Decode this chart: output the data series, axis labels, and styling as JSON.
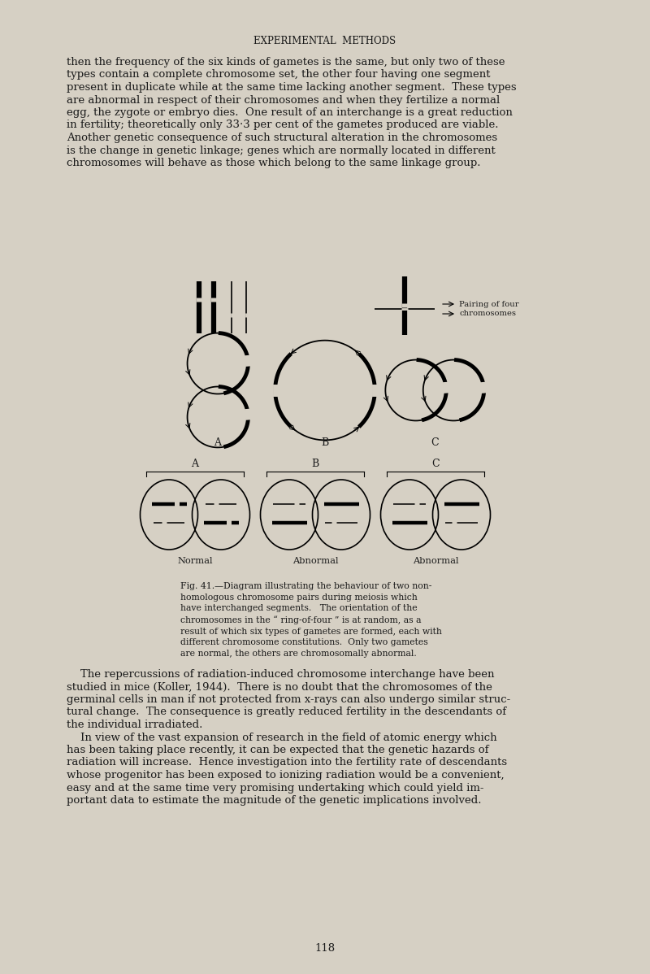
{
  "bg_color": "#d6d0c4",
  "text_color": "#1a1a1a",
  "page_width": 8.0,
  "page_height": 11.98,
  "title": "EXPERIMENTAL  METHODS",
  "title_fontsize": 8.5,
  "para1": "then the frequency of the six kinds of gametes is the same, but only two of these\ntypes contain a complete chromosome set, the other four having one segment\npresent in duplicate while at the same time lacking another segment.  These types\nare abnormal in respect of their chromosomes and when they fertilize a normal\negg, the zygote or embryo dies.  One result of an interchange is a great reduction\nin fertility; theoretically only 33·3 per cent of the gametes produced are viable.\nAnother genetic consequence of such structural alteration in the chromosomes\nis the change in genetic linkage; genes which are normally located in different\nchromosomes will behave as those which belong to the same linkage group.",
  "para2": "    The repercussions of radiation-induced chromosome interchange have been\nstudied in mice (Koller, 1944).  There is no doubt that the chromosomes of the\ngerminal cells in man if not protected from x-rays can also undergo similar struc-\ntural change.  The consequence is greatly reduced fertility in the descendants of\nthe individual irradiated.\n    In view of the vast expansion of research in the field of atomic energy which\nhas been taking place recently, it can be expected that the genetic hazards of\nradiation will increase.  Hence investigation into the fertility rate of descendants\nwhose progenitor has been exposed to ionizing radiation would be a convenient,\neasy and at the same time very promising undertaking which could yield im-\nportant data to estimate the magnitude of the genetic implications involved.",
  "caption": "Fig. 41.—Diagram illustrating the behaviour of two non-\nhomologous chromosome pairs during meiosis which\nhave interchanged segments.   The orientation of the\nchromosomes in the “ ring-of-four ” is at random, as a\nresult of which six types of gametes are formed, each with\ndifferent chromosome constitutions.  Only two gametes\nare normal, the others are chromosomally abnormal.",
  "page_number": "118",
  "label_A": "A",
  "label_B": "B",
  "label_C": "C",
  "label_Normal": "Normal",
  "label_Abnormal1": "Abnormal",
  "label_Abnormal2": "Abnormal",
  "label_pairing": "Pairing of four\nchromosomes"
}
